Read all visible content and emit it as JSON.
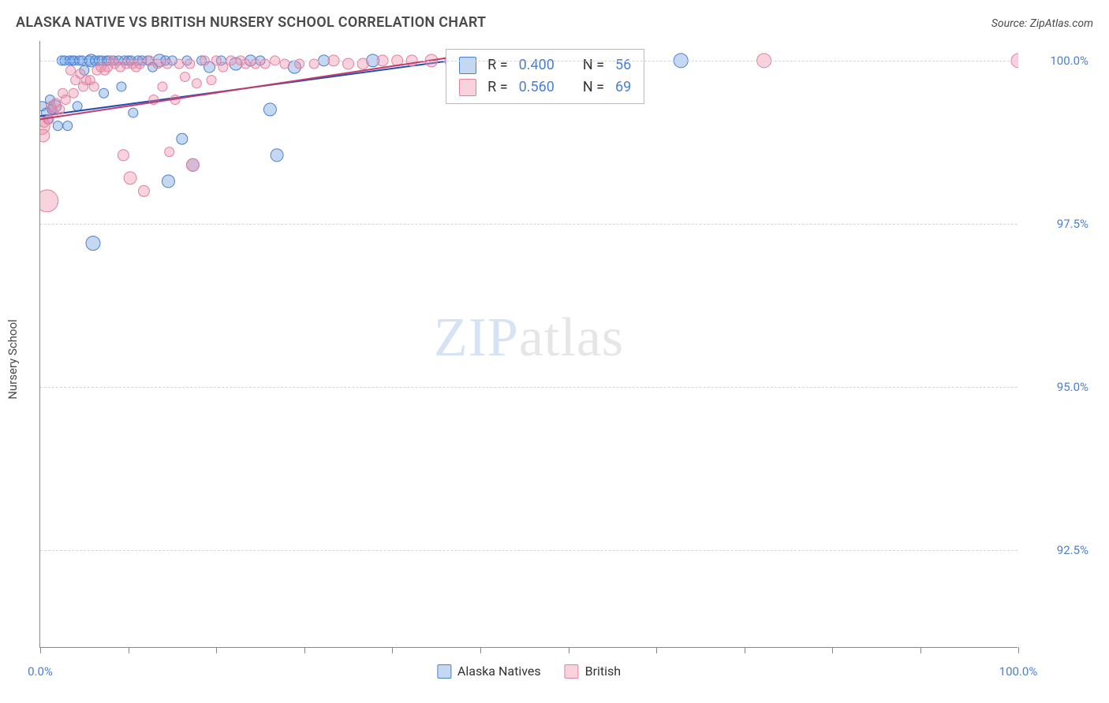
{
  "header": {
    "title": "ALASKA NATIVE VS BRITISH NURSERY SCHOOL CORRELATION CHART",
    "source": "Source: ZipAtlas.com"
  },
  "chart": {
    "type": "scatter",
    "ylabel": "Nursery School",
    "xlim": [
      0,
      100
    ],
    "ylim": [
      91.0,
      100.3
    ],
    "y_ticks": [
      92.5,
      95.0,
      97.5,
      100.0
    ],
    "y_tick_labels": [
      "92.5%",
      "95.0%",
      "97.5%",
      "100.0%"
    ],
    "x_ticks": [
      0,
      9,
      18,
      27,
      36,
      45,
      54,
      63,
      72,
      81,
      90,
      100
    ],
    "x_min_label": "0.0%",
    "x_max_label": "100.0%",
    "background_color": "#ffffff",
    "grid_color": "#d5d5d5",
    "axis_color": "#888888",
    "tick_label_color": "#4b7fd1",
    "watermark": {
      "color_zip": "#d6e3f4",
      "color_atlas": "#b9b9b9",
      "text_zip": "ZIP",
      "text_atlas": "atlas"
    },
    "series": [
      {
        "name": "Alaska Natives",
        "color_fill": "rgba(107,157,222,0.40)",
        "color_stroke": "#4b7fd1",
        "line_color": "#1f4fb3",
        "trendline": {
          "x1": 0,
          "y1": 99.15,
          "x2": 42,
          "y2": 100.0
        },
        "points": [
          [
            0.2,
            99.3,
            6
          ],
          [
            0.6,
            99.2,
            6
          ],
          [
            0.8,
            99.1,
            6
          ],
          [
            1.2,
            99.25,
            6
          ],
          [
            1.0,
            99.4,
            6
          ],
          [
            1.5,
            99.3,
            8
          ],
          [
            1.8,
            99.0,
            6
          ],
          [
            2.2,
            100.0,
            6
          ],
          [
            2.5,
            100.0,
            6
          ],
          [
            2.8,
            99.0,
            6
          ],
          [
            3.0,
            100.0,
            6
          ],
          [
            3.3,
            100.0,
            6
          ],
          [
            3.5,
            100.0,
            6
          ],
          [
            3.8,
            99.3,
            6
          ],
          [
            4.0,
            100.0,
            6
          ],
          [
            4.3,
            100.0,
            6
          ],
          [
            4.5,
            99.85,
            6
          ],
          [
            5.0,
            100.0,
            6
          ],
          [
            5.2,
            100.0,
            8
          ],
          [
            5.4,
            97.2,
            9
          ],
          [
            5.6,
            100.0,
            6
          ],
          [
            6.0,
            100.0,
            6
          ],
          [
            6.3,
            100.0,
            6
          ],
          [
            6.5,
            99.5,
            6
          ],
          [
            6.8,
            100.0,
            6
          ],
          [
            7.0,
            100.0,
            6
          ],
          [
            7.5,
            100.0,
            6
          ],
          [
            8.0,
            100.0,
            6
          ],
          [
            8.3,
            99.6,
            6
          ],
          [
            8.6,
            100.0,
            6
          ],
          [
            9.0,
            100.0,
            6
          ],
          [
            9.3,
            100.0,
            6
          ],
          [
            9.5,
            99.2,
            6
          ],
          [
            10.0,
            100.0,
            6
          ],
          [
            10.4,
            100.0,
            6
          ],
          [
            11.0,
            100.0,
            6
          ],
          [
            11.5,
            99.9,
            6
          ],
          [
            12.2,
            100.0,
            8
          ],
          [
            12.8,
            100.0,
            6
          ],
          [
            13.1,
            98.15,
            8
          ],
          [
            13.5,
            100.0,
            6
          ],
          [
            14.5,
            98.8,
            7
          ],
          [
            15.0,
            100.0,
            6
          ],
          [
            15.6,
            98.4,
            8
          ],
          [
            16.5,
            100.0,
            6
          ],
          [
            17.3,
            99.9,
            7
          ],
          [
            18.5,
            100.0,
            6
          ],
          [
            20.0,
            99.95,
            8
          ],
          [
            21.5,
            100.0,
            7
          ],
          [
            22.5,
            100.0,
            6
          ],
          [
            23.5,
            99.25,
            8
          ],
          [
            24.2,
            98.55,
            8
          ],
          [
            26.0,
            99.9,
            8
          ],
          [
            29.0,
            100.0,
            7
          ],
          [
            34.0,
            100.0,
            8
          ],
          [
            65.5,
            100.0,
            9
          ]
        ]
      },
      {
        "name": "British",
        "color_fill": "rgba(238,143,169,0.40)",
        "color_stroke": "#e081a0",
        "line_color": "#c43b6b",
        "trendline": {
          "x1": 0,
          "y1": 99.1,
          "x2": 42,
          "y2": 100.05
        },
        "points": [
          [
            0.1,
            99.0,
            11
          ],
          [
            0.3,
            98.85,
            8
          ],
          [
            0.4,
            99.05,
            6
          ],
          [
            0.7,
            97.85,
            14
          ],
          [
            0.9,
            99.1,
            6
          ],
          [
            1.1,
            99.3,
            6
          ],
          [
            1.4,
            99.2,
            6
          ],
          [
            1.6,
            99.35,
            6
          ],
          [
            2.0,
            99.25,
            6
          ],
          [
            2.3,
            99.5,
            6
          ],
          [
            2.6,
            99.4,
            6
          ],
          [
            3.1,
            99.85,
            6
          ],
          [
            3.4,
            99.5,
            6
          ],
          [
            3.6,
            99.7,
            6
          ],
          [
            4.1,
            99.8,
            6
          ],
          [
            4.4,
            99.6,
            6
          ],
          [
            4.7,
            99.7,
            6
          ],
          [
            5.1,
            99.7,
            6
          ],
          [
            5.5,
            99.6,
            6
          ],
          [
            5.8,
            99.85,
            6
          ],
          [
            6.2,
            99.9,
            6
          ],
          [
            6.6,
            99.85,
            6
          ],
          [
            6.9,
            99.9,
            6
          ],
          [
            7.3,
            100.0,
            6
          ],
          [
            7.6,
            99.95,
            6
          ],
          [
            8.2,
            99.9,
            6
          ],
          [
            8.5,
            98.55,
            7
          ],
          [
            8.8,
            99.95,
            6
          ],
          [
            9.2,
            98.2,
            8
          ],
          [
            9.4,
            99.95,
            6
          ],
          [
            9.8,
            99.9,
            6
          ],
          [
            10.2,
            99.95,
            6
          ],
          [
            10.6,
            98.0,
            7
          ],
          [
            11.2,
            100.0,
            6
          ],
          [
            11.6,
            99.4,
            6
          ],
          [
            12.0,
            99.95,
            6
          ],
          [
            12.5,
            99.6,
            6
          ],
          [
            13.0,
            99.95,
            6
          ],
          [
            13.2,
            98.6,
            6
          ],
          [
            13.8,
            99.4,
            6
          ],
          [
            14.2,
            99.95,
            6
          ],
          [
            14.8,
            99.75,
            6
          ],
          [
            15.3,
            99.95,
            6
          ],
          [
            15.6,
            98.4,
            8
          ],
          [
            16.0,
            99.65,
            6
          ],
          [
            16.8,
            100.0,
            6
          ],
          [
            17.5,
            99.7,
            6
          ],
          [
            18.0,
            100.0,
            6
          ],
          [
            18.7,
            99.9,
            6
          ],
          [
            19.5,
            100.0,
            6
          ],
          [
            20.5,
            100.0,
            6
          ],
          [
            21.0,
            99.95,
            6
          ],
          [
            22.0,
            99.95,
            6
          ],
          [
            23.0,
            99.95,
            6
          ],
          [
            24.0,
            100.0,
            6
          ],
          [
            25.0,
            99.95,
            6
          ],
          [
            26.5,
            99.95,
            6
          ],
          [
            28.0,
            99.95,
            6
          ],
          [
            30.0,
            100.0,
            7
          ],
          [
            31.5,
            99.95,
            7
          ],
          [
            33.0,
            99.95,
            7
          ],
          [
            35.0,
            100.0,
            7
          ],
          [
            36.5,
            100.0,
            7
          ],
          [
            38.0,
            100.0,
            7
          ],
          [
            40.0,
            100.0,
            8
          ],
          [
            42.0,
            100.0,
            8
          ],
          [
            46.0,
            100.0,
            8
          ],
          [
            74.0,
            100.0,
            9
          ],
          [
            100.0,
            100.0,
            9
          ]
        ]
      }
    ],
    "stats_box": {
      "left_pct": 41.5,
      "top_pct": 0,
      "rows": [
        {
          "swatch_fill": "rgba(107,157,222,0.40)",
          "swatch_stroke": "#4b7fd1",
          "r_label": "R =",
          "r_value": "0.400",
          "n_label": "N =",
          "n_value": "56"
        },
        {
          "swatch_fill": "rgba(238,143,169,0.40)",
          "swatch_stroke": "#e081a0",
          "r_label": "R =",
          "r_value": "0.560",
          "n_label": "N =",
          "n_value": "69"
        }
      ]
    },
    "bottom_legend": [
      {
        "label": "Alaska Natives",
        "fill": "rgba(107,157,222,0.40)",
        "stroke": "#4b7fd1"
      },
      {
        "label": "British",
        "fill": "rgba(238,143,169,0.40)",
        "stroke": "#e081a0"
      }
    ]
  }
}
